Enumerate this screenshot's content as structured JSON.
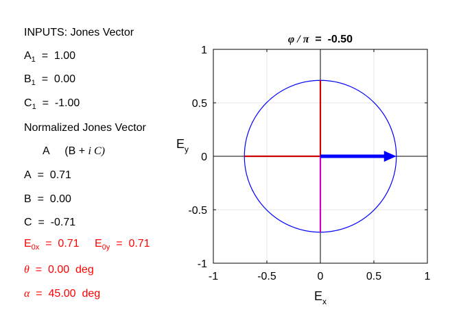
{
  "inputs": {
    "heading": "INPUTS: Jones Vector",
    "a_label": "A",
    "a_sub": "1",
    "a_value": "1.00",
    "b_label": "B",
    "b_sub": "1",
    "b_value": "0.00",
    "c_label": "C",
    "c_sub": "1",
    "c_value": "-1.00"
  },
  "normalized": {
    "heading": "Normalized Jones Vector",
    "form_a": "A",
    "form_open": "(B + ",
    "form_i": "i",
    "form_c": " C)",
    "a_label": "A",
    "a_value": "0.71",
    "b_label": "B",
    "b_value": "0.00",
    "c_label": "C",
    "c_value": "-0.71"
  },
  "results": {
    "e0x_label": "E",
    "e0x_sub": "0x",
    "e0x_value": "0.71",
    "e0y_label": "E",
    "e0y_sub": "0y",
    "e0y_value": "0.71",
    "theta_symbol": "θ",
    "theta_value": "0.00",
    "theta_unit": "deg",
    "alpha_symbol": "α",
    "alpha_value": "45.00",
    "alpha_unit": "deg"
  },
  "chart_data": {
    "type": "line",
    "title_symbol": "φ / π",
    "title_value": "-0.50",
    "xlabel": "E",
    "xlabel_sub": "x",
    "ylabel": "E",
    "ylabel_sub": "y",
    "xlim": [
      -1,
      1
    ],
    "ylim": [
      -1,
      1
    ],
    "xticks": [
      -1,
      -0.5,
      0,
      0.5,
      1
    ],
    "yticks": [
      -1,
      -0.5,
      0,
      0.5,
      1
    ],
    "xtick_labels": [
      "-1",
      "-0.5",
      "0",
      "0.5",
      "1"
    ],
    "ytick_labels": [
      "-1",
      "-0.5",
      "0",
      "0.5",
      "1"
    ],
    "grid": true,
    "series": [
      {
        "kind": "circle",
        "center": [
          0,
          0
        ],
        "radius": 0.71,
        "color": "#0000ff"
      },
      {
        "kind": "segment",
        "x": [
          -0.71,
          0
        ],
        "y": [
          0,
          0
        ],
        "color": "#cc0000"
      },
      {
        "kind": "segment",
        "x": [
          0,
          0
        ],
        "y": [
          0,
          0.71
        ],
        "color": "#cc0000"
      },
      {
        "kind": "segment",
        "x": [
          0,
          0
        ],
        "y": [
          0,
          -0.71
        ],
        "color": "#cc00cc"
      },
      {
        "kind": "arrow",
        "x": [
          0,
          0.71
        ],
        "y": [
          0,
          0
        ],
        "color": "#0000ff"
      }
    ]
  },
  "colors": {
    "result_text": "#ff0000"
  }
}
